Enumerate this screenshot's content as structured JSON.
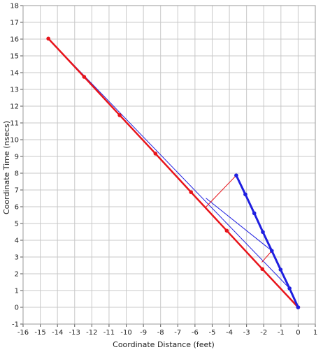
{
  "chart_data": {
    "type": "line",
    "xlabel": "Coordinate Distance (feet)",
    "ylabel": "Coordinate Time (nsecs)",
    "xlim": [
      -16,
      1
    ],
    "ylim": [
      -1,
      18
    ],
    "x_ticks": [
      -16,
      -15,
      -14,
      -13,
      -12,
      -11,
      -10,
      -9,
      -8,
      -7,
      -6,
      -5,
      -4,
      -3,
      -2,
      -1,
      0,
      1
    ],
    "y_ticks": [
      -1,
      0,
      1,
      2,
      3,
      4,
      5,
      6,
      7,
      8,
      9,
      10,
      11,
      12,
      13,
      14,
      15,
      16,
      17,
      18
    ],
    "grid": true,
    "legend": "none",
    "colors": {
      "red": "#e8141b",
      "blue": "#1f1fe0",
      "grid": "#c8c8c8",
      "frame": "#9a9a9a"
    },
    "series": [
      {
        "style": "thick-red-with-markers",
        "x": [
          0,
          -2.08,
          -4.15,
          -6.23,
          -8.3,
          -10.38,
          -12.45,
          -14.53
        ],
        "y": [
          0,
          2.28,
          4.57,
          6.87,
          9.17,
          11.46,
          13.75,
          16.03
        ]
      },
      {
        "style": "thick-blue-with-markers",
        "x": [
          0,
          -0.5,
          -1.02,
          -1.53,
          -2.05,
          -2.55,
          -3.07,
          -3.6
        ],
        "y": [
          0,
          1.13,
          2.25,
          3.37,
          4.49,
          5.61,
          6.74,
          7.87
        ]
      },
      {
        "style": "thin-blue",
        "x": [
          -14.53,
          -0.5
        ],
        "y": [
          16.03,
          1.13
        ]
      },
      {
        "style": "thin-blue",
        "x": [
          -5.35,
          -1.53
        ],
        "y": [
          6.5,
          3.37
        ]
      },
      {
        "style": "thin-red",
        "x": [
          -3.6,
          -5.35
        ],
        "y": [
          7.87,
          6.0
        ]
      },
      {
        "style": "thin-red",
        "x": [
          -1.53,
          -2.1
        ],
        "y": [
          3.37,
          2.7
        ]
      }
    ]
  }
}
